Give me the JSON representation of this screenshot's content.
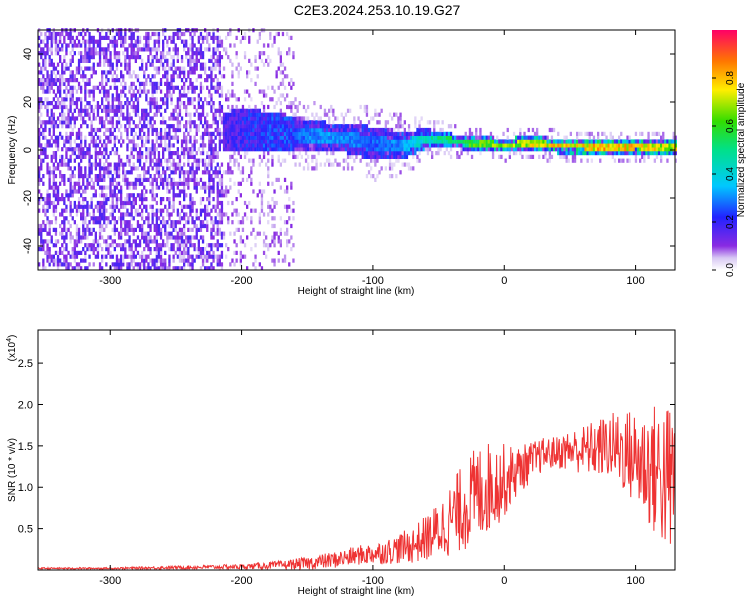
{
  "title": "C2E3.2024.253.10.19.G27",
  "chart_data": [
    {
      "type": "heatmap",
      "xlabel": "Height of straight line (km)",
      "ylabel": "Frequency (Hz)",
      "xlim": [
        -355,
        130
      ],
      "ylim": [
        -50,
        50
      ],
      "x_ticks": [
        -300,
        -200,
        -100,
        0,
        100
      ],
      "x_tick_labels": [
        "-300",
        "-200",
        "-100",
        "0",
        "100"
      ],
      "y_ticks": [
        -40,
        -20,
        0,
        20,
        40
      ],
      "y_tick_labels": [
        "-40",
        "-20",
        "0",
        "20",
        "40"
      ],
      "colorbar": {
        "label": "Normalized spectral amplitude",
        "range": [
          0,
          1
        ],
        "ticks": [
          0,
          0.2,
          0.4,
          0.6,
          0.8
        ],
        "tick_labels": [
          "0.0",
          "0.2",
          "0.4",
          "0.6",
          "0.8"
        ]
      },
      "ridge": {
        "x": [
          -220,
          -200,
          -180,
          -160,
          -140,
          -120,
          -100,
          -80,
          -60,
          -40,
          -20,
          0,
          20,
          40,
          60,
          80,
          100,
          125
        ],
        "center_freq": [
          6,
          8,
          7,
          6,
          5,
          4,
          2,
          1,
          4,
          3,
          2,
          1,
          2,
          1,
          1,
          0,
          1,
          0
        ],
        "half_width": [
          8,
          9,
          8,
          7,
          6,
          6,
          7,
          6,
          4,
          3,
          3,
          3,
          3,
          3,
          3,
          3,
          3,
          3
        ],
        "peak_amplitude": [
          0.2,
          0.25,
          0.3,
          0.3,
          0.35,
          0.35,
          0.3,
          0.35,
          0.5,
          0.6,
          0.7,
          0.75,
          0.8,
          0.85,
          0.85,
          0.9,
          0.85,
          0.8
        ]
      }
    },
    {
      "type": "line",
      "xlabel": "Height of straight line (km)",
      "ylabel": "SNR (10 * v/v)",
      "y_multiplier": "(x10",
      "y_multiplier_exp": "4",
      "y_multiplier_close": ")",
      "xlim": [
        -355,
        130
      ],
      "ylim": [
        0,
        2.9
      ],
      "x_ticks": [
        -300,
        -200,
        -100,
        0,
        100
      ],
      "x_tick_labels": [
        "-300",
        "-200",
        "-100",
        "0",
        "100"
      ],
      "y_ticks": [
        0.5,
        1.0,
        1.5,
        2.0,
        2.5
      ],
      "y_tick_labels": [
        "0.5",
        "1.0",
        "1.5",
        "2.0",
        "2.5"
      ],
      "color": "#ee3333",
      "series": [
        {
          "x": [
            -355,
            -300,
            -250,
            -200,
            -170,
            -150,
            -130,
            -110,
            -90,
            -70,
            -60,
            -50,
            -40,
            -30,
            -20,
            -10,
            0,
            10,
            20,
            30,
            40,
            50,
            60,
            70,
            80,
            90,
            100,
            110,
            120,
            128
          ],
          "values": [
            0.02,
            0.02,
            0.03,
            0.04,
            0.06,
            0.08,
            0.12,
            0.18,
            0.22,
            0.3,
            0.38,
            0.48,
            0.62,
            0.78,
            0.92,
            1.02,
            1.08,
            1.2,
            1.3,
            1.4,
            1.42,
            1.45,
            1.45,
            1.47,
            1.5,
            1.45,
            1.35,
            1.25,
            1.15,
            1.05
          ],
          "spread": [
            0.01,
            0.01,
            0.02,
            0.03,
            0.05,
            0.08,
            0.1,
            0.12,
            0.15,
            0.22,
            0.28,
            0.35,
            0.45,
            0.55,
            0.6,
            0.55,
            0.45,
            0.3,
            0.25,
            0.2,
            0.2,
            0.25,
            0.3,
            0.35,
            0.4,
            0.5,
            0.6,
            0.75,
            0.9,
            1.0
          ]
        }
      ]
    }
  ]
}
